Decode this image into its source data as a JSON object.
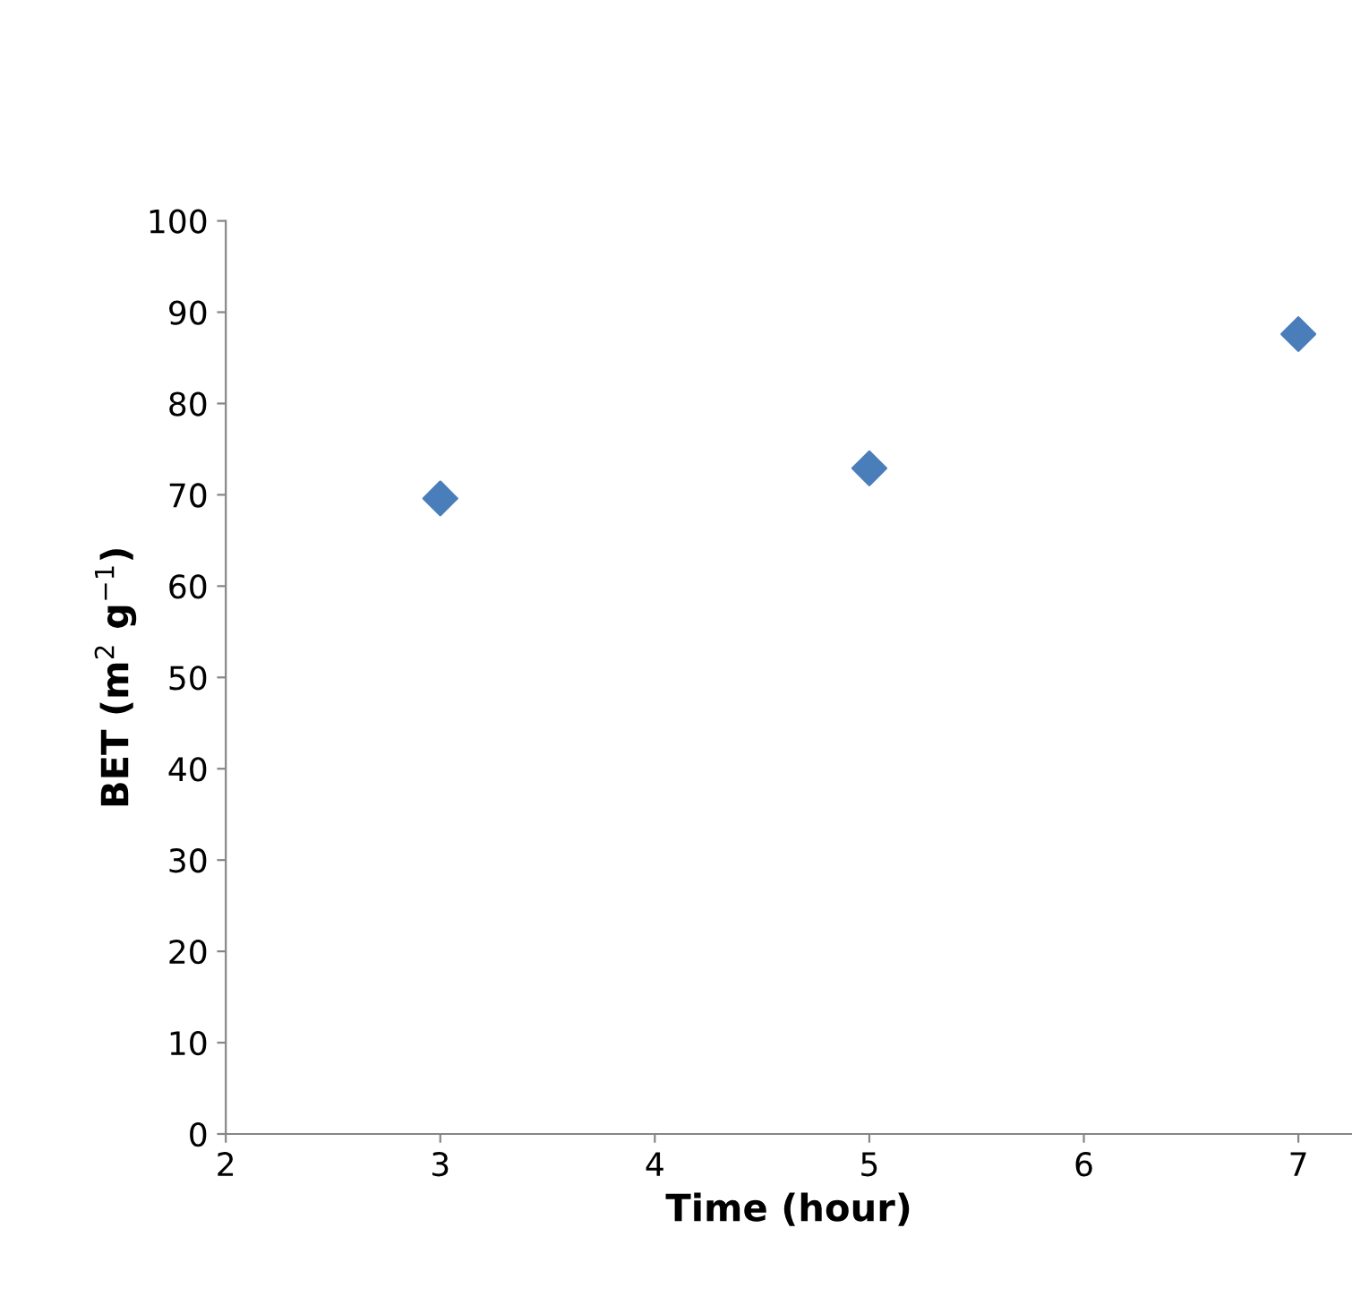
{
  "chart_data": {
    "type": "scatter",
    "xlabel": "Time (hour)",
    "ylabel": "BET (m$^{2}$ g$^{−1}$)",
    "x": [
      3,
      5,
      7
    ],
    "series": [
      {
        "color": "#4a7ebb",
        "values": [
          69.6,
          72.9,
          87.6
        ]
      }
    ],
    "xlim": [
      2,
      7.25
    ],
    "xticks": [
      2,
      3,
      4,
      5,
      6,
      7
    ],
    "ylim": [
      0,
      100
    ],
    "yticks": [
      0,
      10,
      20,
      30,
      40,
      50,
      60,
      70,
      80,
      90,
      100
    ],
    "marker": "diamond",
    "grid": false,
    "legend": false
  }
}
